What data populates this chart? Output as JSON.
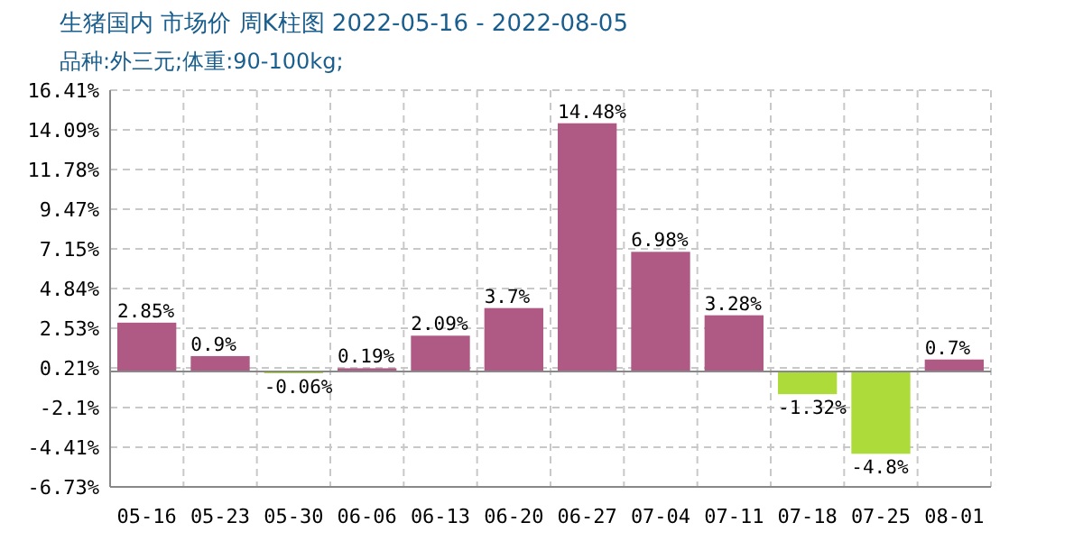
{
  "chart_data": {
    "type": "bar",
    "title": "生猪国内 市场价 周K柱图 2022-05-16 - 2022-08-05",
    "subtitle": "品种:外三元;体重:90-100kg;",
    "categories": [
      "05-16",
      "05-23",
      "05-30",
      "06-06",
      "06-13",
      "06-20",
      "06-27",
      "07-04",
      "07-11",
      "07-18",
      "07-25",
      "08-01"
    ],
    "values": [
      2.85,
      0.9,
      -0.06,
      0.19,
      2.09,
      3.7,
      14.48,
      6.98,
      3.28,
      -1.32,
      -4.8,
      0.7
    ],
    "value_labels": [
      "2.85%",
      "0.9%",
      "-0.06%",
      "0.19%",
      "2.09%",
      "3.7%",
      "14.48%",
      "6.98%",
      "3.28%",
      "-1.32%",
      "-4.8%",
      "0.7%"
    ],
    "colors": [
      "#ae5a85",
      "#ae5a85",
      "#addc3a",
      "#ae5a85",
      "#ae5a85",
      "#ae5a85",
      "#ae5a85",
      "#ae5a85",
      "#ae5a85",
      "#addc3a",
      "#addc3a",
      "#ae5a85"
    ],
    "ylim": [
      -6.73,
      16.41
    ],
    "yticks": [
      {
        "value": -6.73,
        "label": "-6.73%"
      },
      {
        "value": -4.41,
        "label": "-4.41%"
      },
      {
        "value": -2.1,
        "label": "-2.1%"
      },
      {
        "value": 0.21,
        "label": "0.21%"
      },
      {
        "value": 2.53,
        "label": "2.53%"
      },
      {
        "value": 4.84,
        "label": "4.84%"
      },
      {
        "value": 7.15,
        "label": "7.15%"
      },
      {
        "value": 9.47,
        "label": "9.47%"
      },
      {
        "value": 11.78,
        "label": "11.78%"
      },
      {
        "value": 14.09,
        "label": "14.09%"
      },
      {
        "value": 16.41,
        "label": "16.41%"
      }
    ],
    "grid": true
  }
}
